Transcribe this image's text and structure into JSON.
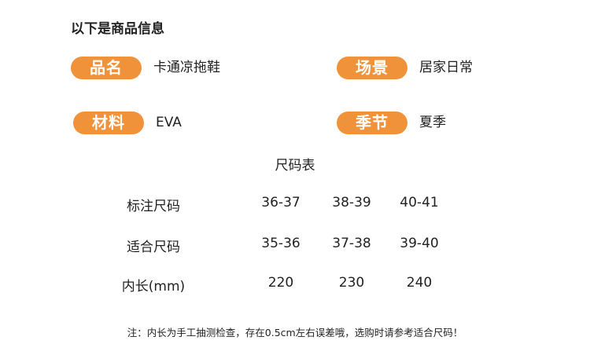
{
  "header": {
    "title": "以下是商品信息"
  },
  "attributes": [
    {
      "label": "品名",
      "value": "卡通凉拖鞋"
    },
    {
      "label": "场景",
      "value": "居家日常"
    },
    {
      "label": "材料",
      "value": "EVA"
    },
    {
      "label": "季节",
      "value": "夏季"
    }
  ],
  "size_table": {
    "title": "尺码表",
    "rows": [
      [
        "标注尺码",
        "36-37",
        "38-39",
        "40-41"
      ],
      [
        "适合尺码",
        "35-36",
        "37-38",
        "39-40"
      ],
      [
        "内长(mm)",
        "220",
        "230",
        "240"
      ]
    ]
  },
  "note": "注：内长为手工抽测检查，存在0.5cm左右误差哦，选购时请参考适合尺码！"
}
